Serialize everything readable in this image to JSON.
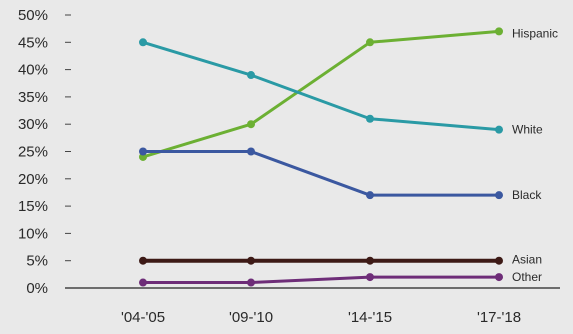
{
  "chart_data": {
    "type": "line",
    "title": "",
    "xlabel": "",
    "ylabel": "",
    "categories": [
      "'04-'05",
      "'09-'10",
      "'14-'15",
      "'17-'18"
    ],
    "ylim": [
      0,
      50
    ],
    "yticks": [
      "0%",
      "5%",
      "10%",
      "15%",
      "20%",
      "25%",
      "30%",
      "35%",
      "40%",
      "45%",
      "50%"
    ],
    "grid": false,
    "legend": "direct labels at right end of lines",
    "series": [
      {
        "name": "Hispanic",
        "color": "#6cb033",
        "values": [
          24,
          30,
          45,
          47
        ]
      },
      {
        "name": "White",
        "color": "#2a9aa5",
        "values": [
          45,
          39,
          31,
          29
        ]
      },
      {
        "name": "Black",
        "color": "#3b58a0",
        "values": [
          25,
          25,
          17,
          17
        ]
      },
      {
        "name": "Asian",
        "color": "#3d1a16",
        "values": [
          5,
          5,
          5,
          5
        ]
      },
      {
        "name": "Other",
        "color": "#6e2d78",
        "values": [
          1,
          1,
          2,
          2
        ]
      }
    ]
  },
  "colors": {
    "background": "#e9e9e9",
    "axis": "#444444",
    "text": "#2a2a2a"
  }
}
